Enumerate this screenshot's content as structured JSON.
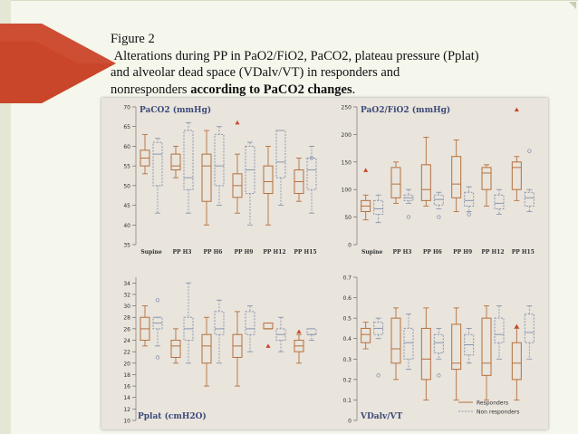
{
  "caption": {
    "line1": "Figure 2",
    "line2": "Alterations during PP in PaO2/FiO2, PaCO2, plateau pressure (Pplat)",
    "line3": "and alveolar dead space (VDalv/VT) in responders and",
    "line4a": "nonresponders ",
    "line4b": "according to PaCO2 changes",
    "line4c": "."
  },
  "colors": {
    "responders": "#b5703d",
    "nonresponders": "#8a97b0",
    "accent_red": "#c9462a"
  },
  "chart_data": [
    {
      "type": "box",
      "title": "PaCO2 (mmHg)",
      "categories": [
        "Supine",
        "PP H3",
        "PP H6",
        "PP H9",
        "PP H12",
        "PP H15"
      ],
      "ylim": [
        35,
        70
      ],
      "yticks": [
        35,
        40,
        45,
        50,
        55,
        60,
        65,
        70
      ],
      "series": [
        {
          "name": "Responders",
          "boxes": [
            {
              "min": 53,
              "q1": 55,
              "med": 57,
              "q3": 59,
              "max": 63
            },
            {
              "min": 52,
              "q1": 54,
              "med": 55,
              "q3": 58,
              "max": 60
            },
            {
              "min": 40,
              "q1": 46,
              "med": 55,
              "q3": 58,
              "max": 64
            },
            {
              "min": 43,
              "q1": 47,
              "med": 50,
              "q3": 53,
              "max": 58
            },
            {
              "min": 40,
              "q1": 48,
              "med": 51,
              "q3": 55,
              "max": 60
            },
            {
              "min": 46,
              "q1": 48,
              "med": 51,
              "q3": 54,
              "max": 57
            }
          ],
          "outliers": [
            [
              3,
              66
            ]
          ]
        },
        {
          "name": "Non responders",
          "boxes": [
            {
              "min": 43,
              "q1": 50,
              "med": 58,
              "q3": 61,
              "max": 62
            },
            {
              "min": 43,
              "q1": 49,
              "med": 52,
              "q3": 64,
              "max": 66
            },
            {
              "min": 45,
              "q1": 50,
              "med": 55,
              "q3": 63,
              "max": 65
            },
            {
              "min": 40,
              "q1": 48,
              "med": 54,
              "q3": 60,
              "max": 61
            },
            {
              "min": 45,
              "q1": 52,
              "med": 56,
              "q3": 64,
              "max": 64
            },
            {
              "min": 43,
              "q1": 49,
              "med": 54,
              "q3": 57,
              "max": 60
            }
          ],
          "outliers": [
            [
              5,
              57
            ]
          ]
        }
      ]
    },
    {
      "type": "box",
      "title": "PaO2/FiO2 (mmHg)",
      "categories": [
        "Supine",
        "PP H3",
        "PP H6",
        "PP H9",
        "PP H12",
        "PP H15"
      ],
      "ylim": [
        0,
        250
      ],
      "yticks": [
        0,
        50,
        100,
        150,
        200,
        250
      ],
      "series": [
        {
          "name": "Responders",
          "boxes": [
            {
              "min": 45,
              "q1": 60,
              "med": 70,
              "q3": 80,
              "max": 90
            },
            {
              "min": 75,
              "q1": 85,
              "med": 110,
              "q3": 140,
              "max": 150
            },
            {
              "min": 70,
              "q1": 80,
              "med": 100,
              "q3": 145,
              "max": 195
            },
            {
              "min": 60,
              "q1": 85,
              "med": 110,
              "q3": 160,
              "max": 190
            },
            {
              "min": 70,
              "q1": 100,
              "med": 130,
              "q3": 140,
              "max": 145
            },
            {
              "min": 80,
              "q1": 100,
              "med": 140,
              "q3": 150,
              "max": 160
            }
          ],
          "outliers": [
            [
              0,
              135
            ],
            [
              5,
              245
            ]
          ]
        },
        {
          "name": "Non responders",
          "boxes": [
            {
              "min": 40,
              "q1": 55,
              "med": 65,
              "q3": 80,
              "max": 90
            },
            {
              "min": 75,
              "q1": 80,
              "med": 85,
              "q3": 90,
              "max": 100
            },
            {
              "min": 65,
              "q1": 72,
              "med": 82,
              "q3": 90,
              "max": 95
            },
            {
              "min": 60,
              "q1": 70,
              "med": 80,
              "q3": 95,
              "max": 105
            },
            {
              "min": 55,
              "q1": 65,
              "med": 75,
              "q3": 90,
              "max": 100
            },
            {
              "min": 60,
              "q1": 70,
              "med": 85,
              "q3": 95,
              "max": 100
            }
          ],
          "outliers": [
            [
              1,
              50
            ],
            [
              2,
              50
            ],
            [
              3,
              55
            ],
            [
              5,
              170
            ]
          ]
        }
      ]
    },
    {
      "type": "box",
      "title": "Pplat (cmH2O)",
      "categories": [
        "Supine",
        "PP H3",
        "PP H6",
        "PP H9",
        "PP H12",
        "PP H15"
      ],
      "ylim": [
        10,
        35
      ],
      "yticks": [
        10,
        12,
        14,
        16,
        18,
        20,
        22,
        24,
        26,
        28,
        30,
        32,
        34
      ],
      "series": [
        {
          "name": "Responders",
          "boxes": [
            {
              "min": 23,
              "q1": 24,
              "med": 26,
              "q3": 28,
              "max": 30
            },
            {
              "min": 20,
              "q1": 21,
              "med": 23,
              "q3": 24,
              "max": 26
            },
            {
              "min": 16,
              "q1": 20,
              "med": 23,
              "q3": 25,
              "max": 28
            },
            {
              "min": 16,
              "q1": 21,
              "med": 23,
              "q3": 25,
              "max": 29
            },
            {
              "min": 26,
              "q1": 26,
              "med": 26,
              "q3": 27,
              "max": 27
            },
            {
              "min": 20,
              "q1": 22,
              "med": 23,
              "q3": 24,
              "max": 25
            }
          ],
          "outliers": [
            [
              4,
              23
            ],
            [
              5,
              25.5
            ]
          ]
        },
        {
          "name": "Non responders",
          "boxes": [
            {
              "min": 23,
              "q1": 26,
              "med": 27,
              "q3": 28,
              "max": 28
            },
            {
              "min": 20,
              "q1": 24,
              "med": 26,
              "q3": 28,
              "max": 34
            },
            {
              "min": 20,
              "q1": 25,
              "med": 26,
              "q3": 29,
              "max": 31
            },
            {
              "min": 22,
              "q1": 25,
              "med": 26,
              "q3": 29,
              "max": 30
            },
            {
              "min": 22,
              "q1": 24,
              "med": 25,
              "q3": 26,
              "max": 28
            },
            {
              "min": 24,
              "q1": 25,
              "med": 25,
              "q3": 26,
              "max": 26
            }
          ],
          "outliers": [
            [
              0,
              31
            ],
            [
              0,
              21
            ]
          ]
        }
      ]
    },
    {
      "type": "box",
      "title": "VDalv/VT",
      "categories": [
        "Supine",
        "PP H3",
        "PP H6",
        "PP H9",
        "PP H12",
        "PP H15"
      ],
      "ylim": [
        0,
        0.7
      ],
      "yticks": [
        0,
        0.1,
        0.2,
        0.3,
        0.4,
        0.5,
        0.6,
        0.7
      ],
      "legend": {
        "placement": "bottom-right",
        "entries": [
          "Responders",
          "Non responders"
        ]
      },
      "series": [
        {
          "name": "Responders",
          "boxes": [
            {
              "min": 0.35,
              "q1": 0.38,
              "med": 0.42,
              "q3": 0.45,
              "max": 0.48
            },
            {
              "min": 0.2,
              "q1": 0.28,
              "med": 0.35,
              "q3": 0.5,
              "max": 0.55
            },
            {
              "min": 0.1,
              "q1": 0.2,
              "med": 0.3,
              "q3": 0.45,
              "max": 0.55
            },
            {
              "min": 0.1,
              "q1": 0.25,
              "med": 0.28,
              "q3": 0.47,
              "max": 0.55
            },
            {
              "min": 0.1,
              "q1": 0.22,
              "med": 0.28,
              "q3": 0.5,
              "max": 0.56
            },
            {
              "min": 0.1,
              "q1": 0.2,
              "med": 0.28,
              "q3": 0.38,
              "max": 0.45
            }
          ],
          "outliers": [
            [
              5,
              0.46
            ]
          ]
        },
        {
          "name": "Non responders",
          "boxes": [
            {
              "min": 0.4,
              "q1": 0.42,
              "med": 0.45,
              "q3": 0.48,
              "max": 0.5
            },
            {
              "min": 0.25,
              "q1": 0.3,
              "med": 0.38,
              "q3": 0.45,
              "max": 0.52
            },
            {
              "min": 0.3,
              "q1": 0.33,
              "med": 0.38,
              "q3": 0.42,
              "max": 0.45
            },
            {
              "min": 0.28,
              "q1": 0.32,
              "med": 0.37,
              "q3": 0.42,
              "max": 0.45
            },
            {
              "min": 0.3,
              "q1": 0.38,
              "med": 0.42,
              "q3": 0.5,
              "max": 0.56
            },
            {
              "min": 0.3,
              "q1": 0.38,
              "med": 0.43,
              "q3": 0.52,
              "max": 0.56
            }
          ],
          "outliers": [
            [
              0,
              0.22
            ],
            [
              2,
              0.22
            ]
          ]
        }
      ]
    }
  ]
}
